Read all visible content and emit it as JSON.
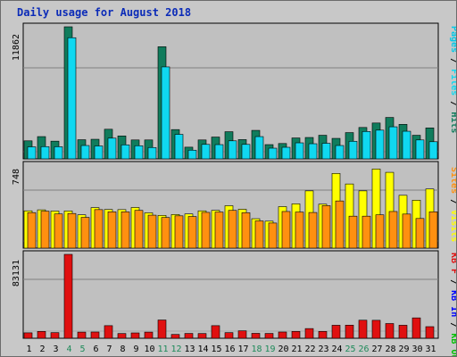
{
  "title": "Daily usage for August 2018",
  "colors": {
    "hits": "#107c5c",
    "files": "#10d8f0",
    "pages": "#00c8e8",
    "visits": "#ffff00",
    "sites": "#ff9010",
    "kbin": "#0000ff",
    "kbout": "#00c000",
    "kbf": "#e01010",
    "weekend": "#1e8a5a",
    "weekday": "#000000"
  },
  "chart_data": [
    {
      "type": "bar",
      "name": "hits-files-pages",
      "x": [
        1,
        2,
        3,
        4,
        5,
        6,
        7,
        8,
        9,
        10,
        11,
        12,
        13,
        14,
        15,
        16,
        17,
        18,
        19,
        20,
        21,
        22,
        23,
        24,
        25,
        26,
        27,
        28,
        29,
        30,
        31
      ],
      "ymax_label": "11862",
      "ylim": [
        0,
        11862
      ],
      "legend": [
        "Hits",
        "Files",
        "Pages"
      ],
      "series": [
        {
          "name": "Hits",
          "values": [
            1620,
            2000,
            1590,
            11862,
            1720,
            1760,
            2660,
            2060,
            1700,
            1700,
            10070,
            2630,
            1050,
            1700,
            1960,
            2440,
            1730,
            2560,
            1280,
            1380,
            1880,
            1920,
            2120,
            1840,
            2360,
            2820,
            3220,
            3720,
            3100,
            2120,
            2780
          ]
        },
        {
          "name": "Files",
          "values": [
            1080,
            1100,
            1090,
            10880,
            1200,
            1160,
            1860,
            1260,
            1180,
            1020,
            8260,
            2200,
            780,
            1300,
            1280,
            1620,
            1300,
            2000,
            960,
            1040,
            1440,
            1360,
            1400,
            1200,
            1580,
            2460,
            2580,
            2880,
            2480,
            1700,
            1540
          ]
        }
      ]
    },
    {
      "type": "bar",
      "name": "visits-sites",
      "x": [
        1,
        2,
        3,
        4,
        5,
        6,
        7,
        8,
        9,
        10,
        11,
        12,
        13,
        14,
        15,
        16,
        17,
        18,
        19,
        20,
        21,
        22,
        23,
        24,
        25,
        26,
        27,
        28,
        29,
        30,
        31
      ],
      "ymax_label": "748",
      "ylim": [
        0,
        748
      ],
      "legend": [
        "Visits",
        "Sites"
      ],
      "series": [
        {
          "name": "Visits",
          "values": [
            336,
            345,
            334,
            335,
            300,
            365,
            348,
            347,
            366,
            318,
            295,
            303,
            308,
            336,
            340,
            382,
            350,
            265,
            243,
            374,
            399,
            516,
            396,
            673,
            578,
            516,
            713,
            683,
            476,
            432,
            533
          ]
        },
        {
          "name": "Sites",
          "values": [
            320,
            333,
            308,
            312,
            277,
            347,
            327,
            327,
            340,
            297,
            276,
            291,
            285,
            322,
            325,
            340,
            319,
            245,
            226,
            330,
            325,
            321,
            383,
            425,
            288,
            288,
            300,
            330,
            307,
            267,
            327
          ]
        }
      ]
    },
    {
      "type": "bar",
      "name": "kbytes",
      "x": [
        1,
        2,
        3,
        4,
        5,
        6,
        7,
        8,
        9,
        10,
        11,
        12,
        13,
        14,
        15,
        16,
        17,
        18,
        19,
        20,
        21,
        22,
        23,
        24,
        25,
        26,
        27,
        28,
        29,
        30,
        31
      ],
      "ymax_label": "83131",
      "ylim": [
        0,
        83131
      ],
      "legend": [
        "KB F",
        "KB In",
        "KB Out"
      ],
      "series": [
        {
          "name": "KB F",
          "values": [
            5400,
            6800,
            5600,
            83131,
            6100,
            6200,
            12500,
            4700,
            5300,
            6100,
            18100,
            3800,
            4800,
            4700,
            12500,
            5600,
            7400,
            4900,
            4800,
            6200,
            6800,
            9600,
            6800,
            12900,
            13000,
            17900,
            17800,
            14600,
            12900,
            20200,
            11500
          ]
        }
      ]
    }
  ],
  "x_labels": {
    "weekend_days": [
      4,
      5,
      11,
      12,
      18,
      19,
      25,
      26
    ]
  }
}
